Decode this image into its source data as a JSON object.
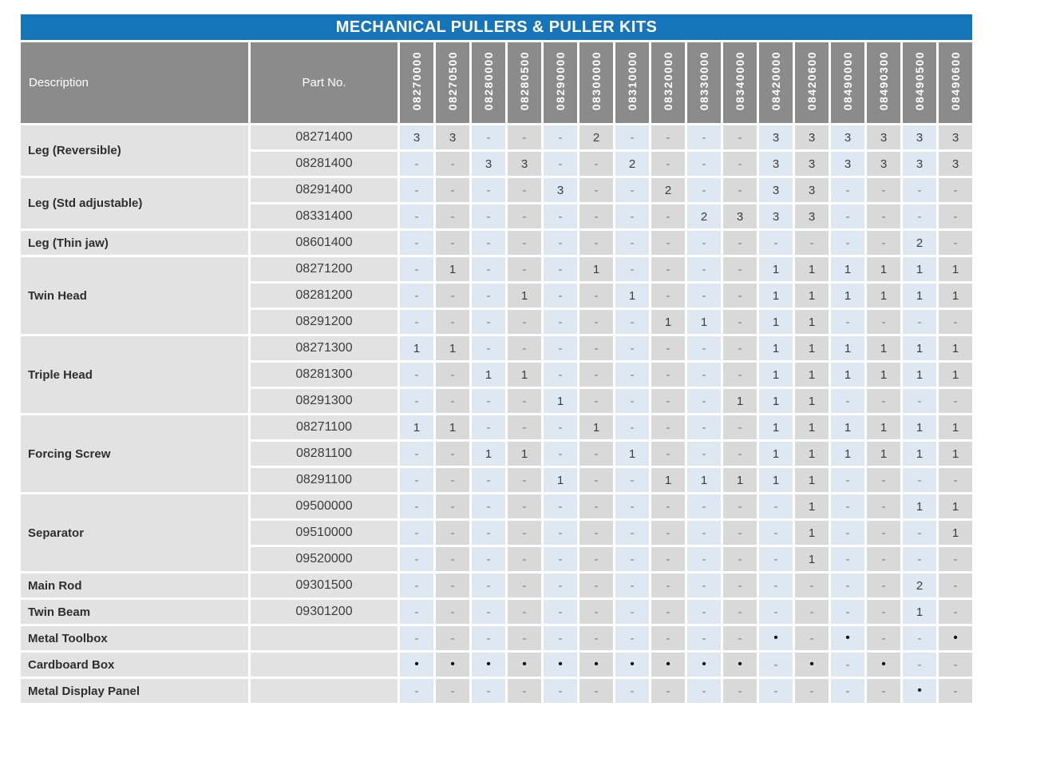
{
  "title": "MECHANICAL PULLERS & PULLER KITS",
  "colors": {
    "title_bar": "#1574ba",
    "header_gray": "#8b8b8b",
    "row_label_gray": "#e2e2e2",
    "column_blue": "#dde8f3",
    "column_gray": "#d9d9d9"
  },
  "table": {
    "description_header": "Description",
    "part_no_header": "Part No.",
    "product_codes": [
      "08270000",
      "08270500",
      "08280000",
      "08280500",
      "08290000",
      "08300000",
      "08310000",
      "08320000",
      "08330000",
      "08340000",
      "08420000",
      "08420600",
      "08490000",
      "08490300",
      "08490500",
      "08490600"
    ],
    "dash_symbol": "-",
    "bullet_symbol": "•",
    "groups": [
      {
        "description": "Leg (Reversible)",
        "rows": [
          {
            "part_no": "08271400",
            "qty": [
              "3",
              "3",
              "-",
              "-",
              "-",
              "2",
              "-",
              "-",
              "-",
              "-",
              "3",
              "3",
              "3",
              "3",
              "3",
              "3"
            ]
          },
          {
            "part_no": "08281400",
            "qty": [
              "-",
              "-",
              "3",
              "3",
              "-",
              "-",
              "2",
              "-",
              "-",
              "-",
              "3",
              "3",
              "3",
              "3",
              "3",
              "3"
            ]
          }
        ]
      },
      {
        "description": "Leg (Std adjustable)",
        "rows": [
          {
            "part_no": "08291400",
            "qty": [
              "-",
              "-",
              "-",
              "-",
              "3",
              "-",
              "-",
              "2",
              "-",
              "-",
              "3",
              "3",
              "-",
              "-",
              "-",
              "-"
            ]
          },
          {
            "part_no": "08331400",
            "qty": [
              "-",
              "-",
              "-",
              "-",
              "-",
              "-",
              "-",
              "-",
              "2",
              "3",
              "3",
              "3",
              "-",
              "-",
              "-",
              "-"
            ]
          }
        ]
      },
      {
        "description": "Leg (Thin jaw)",
        "rows": [
          {
            "part_no": "08601400",
            "qty": [
              "-",
              "-",
              "-",
              "-",
              "-",
              "-",
              "-",
              "-",
              "-",
              "-",
              "-",
              "-",
              "-",
              "-",
              "2",
              "-"
            ]
          }
        ]
      },
      {
        "description": "Twin Head",
        "rows": [
          {
            "part_no": "08271200",
            "qty": [
              "-",
              "1",
              "-",
              "-",
              "-",
              "1",
              "-",
              "-",
              "-",
              "-",
              "1",
              "1",
              "1",
              "1",
              "1",
              "1"
            ]
          },
          {
            "part_no": "08281200",
            "qty": [
              "-",
              "-",
              "-",
              "1",
              "-",
              "-",
              "1",
              "-",
              "-",
              "-",
              "1",
              "1",
              "1",
              "1",
              "1",
              "1"
            ]
          },
          {
            "part_no": "08291200",
            "qty": [
              "-",
              "-",
              "-",
              "-",
              "-",
              "-",
              "-",
              "1",
              "1",
              "-",
              "1",
              "1",
              "-",
              "-",
              "-",
              "-"
            ]
          }
        ]
      },
      {
        "description": "Triple Head",
        "rows": [
          {
            "part_no": "08271300",
            "qty": [
              "1",
              "1",
              "-",
              "-",
              "-",
              "-",
              "-",
              "-",
              "-",
              "-",
              "1",
              "1",
              "1",
              "1",
              "1",
              "1"
            ]
          },
          {
            "part_no": "08281300",
            "qty": [
              "-",
              "-",
              "1",
              "1",
              "-",
              "-",
              "-",
              "-",
              "-",
              "-",
              "1",
              "1",
              "1",
              "1",
              "1",
              "1"
            ]
          },
          {
            "part_no": "08291300",
            "qty": [
              "-",
              "-",
              "-",
              "-",
              "1",
              "-",
              "-",
              "-",
              "-",
              "1",
              "1",
              "1",
              "-",
              "-",
              "-",
              "-"
            ]
          }
        ]
      },
      {
        "description": "Forcing Screw",
        "rows": [
          {
            "part_no": "08271100",
            "qty": [
              "1",
              "1",
              "-",
              "-",
              "-",
              "1",
              "-",
              "-",
              "-",
              "-",
              "1",
              "1",
              "1",
              "1",
              "1",
              "1"
            ]
          },
          {
            "part_no": "08281100",
            "qty": [
              "-",
              "-",
              "1",
              "1",
              "-",
              "-",
              "1",
              "-",
              "-",
              "-",
              "1",
              "1",
              "1",
              "1",
              "1",
              "1"
            ]
          },
          {
            "part_no": "08291100",
            "qty": [
              "-",
              "-",
              "-",
              "-",
              "1",
              "-",
              "-",
              "1",
              "1",
              "1",
              "1",
              "1",
              "-",
              "-",
              "-",
              "-"
            ]
          }
        ]
      },
      {
        "description": "Separator",
        "rows": [
          {
            "part_no": "09500000",
            "qty": [
              "-",
              "-",
              "-",
              "-",
              "-",
              "-",
              "-",
              "-",
              "-",
              "-",
              "-",
              "1",
              "-",
              "-",
              "1",
              "1"
            ]
          },
          {
            "part_no": "09510000",
            "qty": [
              "-",
              "-",
              "-",
              "-",
              "-",
              "-",
              "-",
              "-",
              "-",
              "-",
              "-",
              "1",
              "-",
              "-",
              "-",
              "1"
            ]
          },
          {
            "part_no": "09520000",
            "qty": [
              "-",
              "-",
              "-",
              "-",
              "-",
              "-",
              "-",
              "-",
              "-",
              "-",
              "-",
              "1",
              "-",
              "-",
              "-",
              "-"
            ]
          }
        ]
      },
      {
        "description": "Main Rod",
        "rows": [
          {
            "part_no": "09301500",
            "qty": [
              "-",
              "-",
              "-",
              "-",
              "-",
              "-",
              "-",
              "-",
              "-",
              "-",
              "-",
              "-",
              "-",
              "-",
              "2",
              "-"
            ]
          }
        ]
      },
      {
        "description": "Twin Beam",
        "rows": [
          {
            "part_no": "09301200",
            "qty": [
              "-",
              "-",
              "-",
              "-",
              "-",
              "-",
              "-",
              "-",
              "-",
              "-",
              "-",
              "-",
              "-",
              "-",
              "1",
              "-"
            ]
          }
        ]
      },
      {
        "description": "Metal Toolbox",
        "rows": [
          {
            "part_no": "",
            "qty": [
              "-",
              "-",
              "-",
              "-",
              "-",
              "-",
              "-",
              "-",
              "-",
              "-",
              "•",
              "-",
              "•",
              "-",
              "-",
              "•"
            ]
          }
        ]
      },
      {
        "description": "Cardboard Box",
        "rows": [
          {
            "part_no": "",
            "qty": [
              "•",
              "•",
              "•",
              "•",
              "•",
              "•",
              "•",
              "•",
              "•",
              "•",
              "-",
              "•",
              "-",
              "•",
              "-",
              "-"
            ]
          }
        ]
      },
      {
        "description": "Metal Display Panel",
        "rows": [
          {
            "part_no": "",
            "qty": [
              "-",
              "-",
              "-",
              "-",
              "-",
              "-",
              "-",
              "-",
              "-",
              "-",
              "-",
              "-",
              "-",
              "-",
              "•",
              "-"
            ]
          }
        ]
      }
    ]
  }
}
